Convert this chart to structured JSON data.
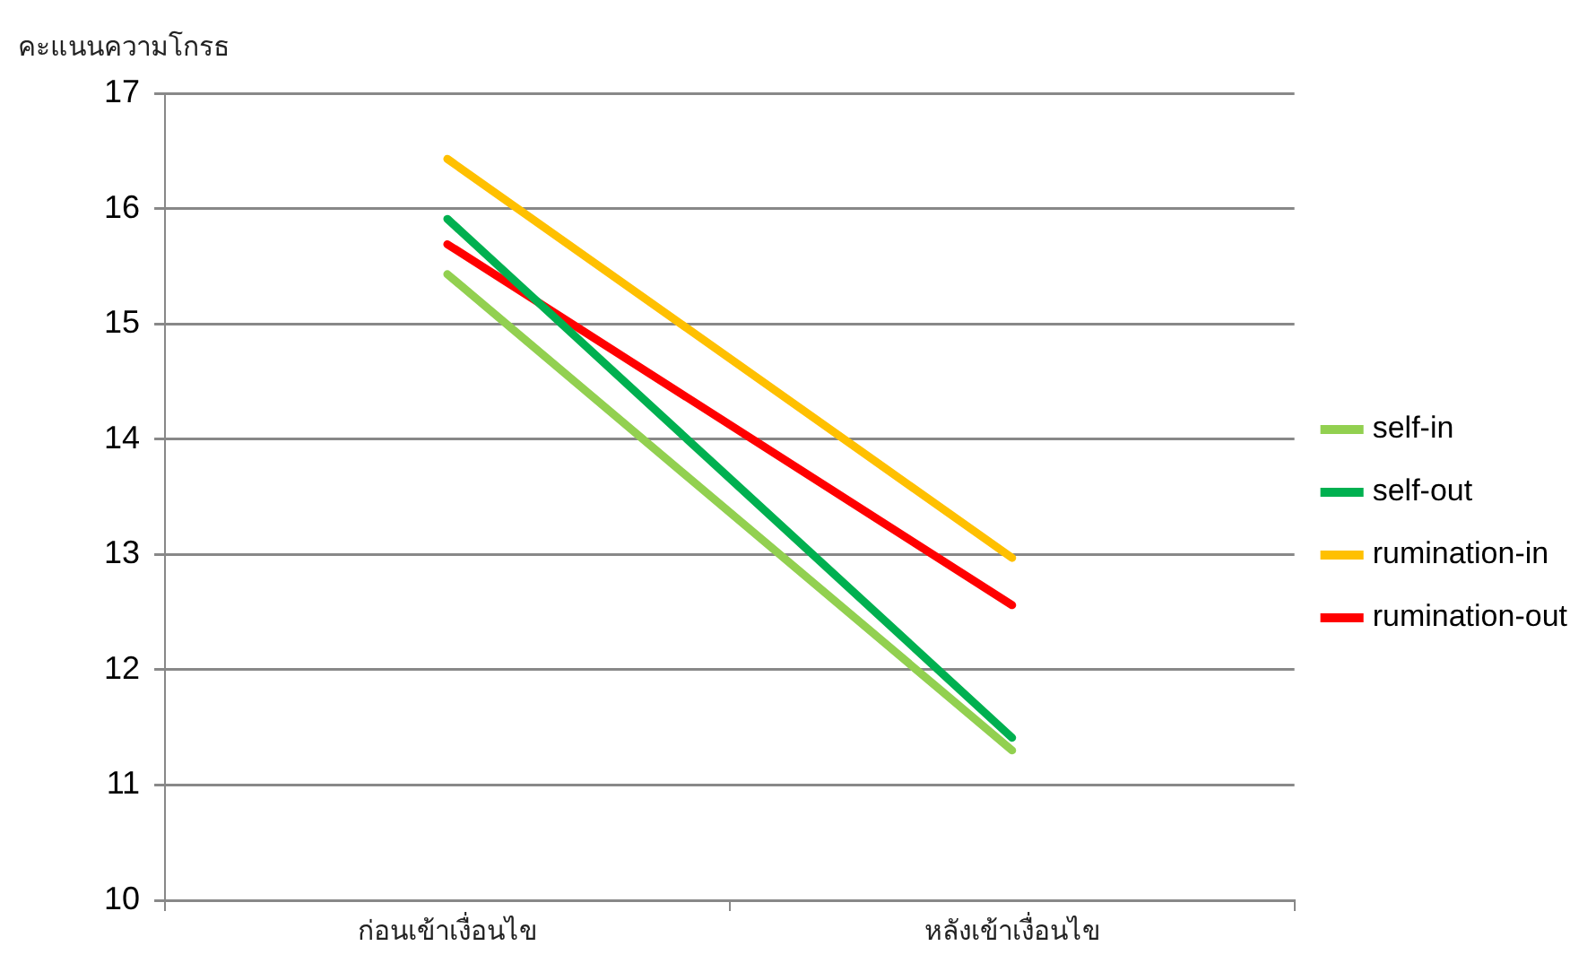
{
  "chart_data": {
    "type": "line",
    "ylabel": "คะแนนความโกรธ",
    "categories": [
      "ก่อนเข้าเงื่อนไข",
      "หลังเข้าเงื่อนไข"
    ],
    "series": [
      {
        "name": "self-in",
        "color": "#92d050",
        "values": [
          15.43,
          11.3
        ]
      },
      {
        "name": "self-out",
        "color": "#00b050",
        "values": [
          15.91,
          11.41
        ]
      },
      {
        "name": "rumination-in",
        "color": "#ffc000",
        "values": [
          16.43,
          12.97
        ]
      },
      {
        "name": "rumination-out",
        "color": "#ff0000",
        "values": [
          15.69,
          12.56
        ]
      }
    ],
    "ylim": [
      10,
      17
    ],
    "yticks": [
      10,
      11,
      12,
      13,
      14,
      15,
      16,
      17
    ],
    "grid": "y",
    "legend": "right",
    "marker": "none",
    "line_style": "solid"
  }
}
